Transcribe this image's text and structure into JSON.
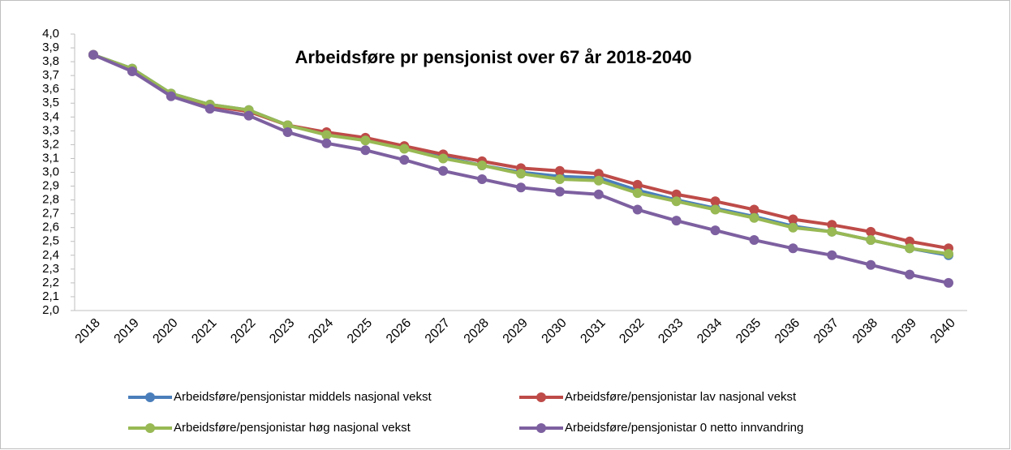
{
  "chart_data": {
    "type": "line",
    "title": "Arbeidsføre pr pensjonist over 67 år 2018-2040",
    "categories": [
      "2018",
      "2019",
      "2020",
      "2021",
      "2022",
      "2023",
      "2024",
      "2025",
      "2026",
      "2027",
      "2028",
      "2029",
      "2030",
      "2031",
      "2032",
      "2033",
      "2034",
      "2035",
      "2036",
      "2037",
      "2038",
      "2039",
      "2040"
    ],
    "ylim": [
      2.0,
      4.0
    ],
    "yticks": [
      {
        "value": 2.0,
        "label": "2,0"
      },
      {
        "value": 2.1,
        "label": "2,1"
      },
      {
        "value": 2.2,
        "label": "2,2"
      },
      {
        "value": 2.3,
        "label": "2,3"
      },
      {
        "value": 2.4,
        "label": "2,4"
      },
      {
        "value": 2.5,
        "label": "2,5"
      },
      {
        "value": 2.6,
        "label": "2,6"
      },
      {
        "value": 2.7,
        "label": "2,7"
      },
      {
        "value": 2.8,
        "label": "2,8"
      },
      {
        "value": 2.9,
        "label": "2,9"
      },
      {
        "value": 3.0,
        "label": "3,0"
      },
      {
        "value": 3.1,
        "label": "3,1"
      },
      {
        "value": 3.2,
        "label": "3,2"
      },
      {
        "value": 3.3,
        "label": "3,3"
      },
      {
        "value": 3.4,
        "label": "3,4"
      },
      {
        "value": 3.5,
        "label": "3,5"
      },
      {
        "value": 3.6,
        "label": "3,6"
      },
      {
        "value": 3.7,
        "label": "3,7"
      },
      {
        "value": 3.8,
        "label": "3,8"
      },
      {
        "value": 3.9,
        "label": "3,9"
      },
      {
        "value": 4.0,
        "label": "4,0"
      }
    ],
    "series": [
      {
        "name": "Arbeidsføre/pensjonistar middels nasjonal vekst",
        "color": "#4a7ebb",
        "values": [
          3.85,
          3.75,
          3.57,
          3.49,
          3.45,
          3.34,
          3.28,
          3.24,
          3.18,
          3.11,
          3.05,
          3.0,
          2.97,
          2.96,
          2.87,
          2.8,
          2.74,
          2.68,
          2.61,
          2.57,
          2.51,
          2.45,
          2.4
        ]
      },
      {
        "name": "Arbeidsføre/pensjonistar lav nasjonal vekst",
        "color": "#be4b48",
        "values": [
          3.85,
          3.74,
          3.56,
          3.48,
          3.44,
          3.34,
          3.29,
          3.25,
          3.19,
          3.13,
          3.08,
          3.03,
          3.01,
          2.99,
          2.91,
          2.84,
          2.79,
          2.73,
          2.66,
          2.62,
          2.57,
          2.5,
          2.45
        ]
      },
      {
        "name": "Arbeidsføre/pensjonistar høg nasjonal vekst",
        "color": "#98b954",
        "values": [
          3.85,
          3.75,
          3.57,
          3.49,
          3.45,
          3.34,
          3.27,
          3.23,
          3.17,
          3.1,
          3.05,
          2.99,
          2.95,
          2.94,
          2.85,
          2.79,
          2.73,
          2.67,
          2.6,
          2.57,
          2.51,
          2.45,
          2.41
        ]
      },
      {
        "name": "Arbeidsføre/pensjonistar 0 netto innvandring",
        "color": "#7d60a0",
        "values": [
          3.85,
          3.73,
          3.55,
          3.46,
          3.41,
          3.29,
          3.21,
          3.16,
          3.09,
          3.01,
          2.95,
          2.89,
          2.86,
          2.84,
          2.73,
          2.65,
          2.58,
          2.51,
          2.45,
          2.4,
          2.33,
          2.26,
          2.2
        ]
      }
    ]
  }
}
